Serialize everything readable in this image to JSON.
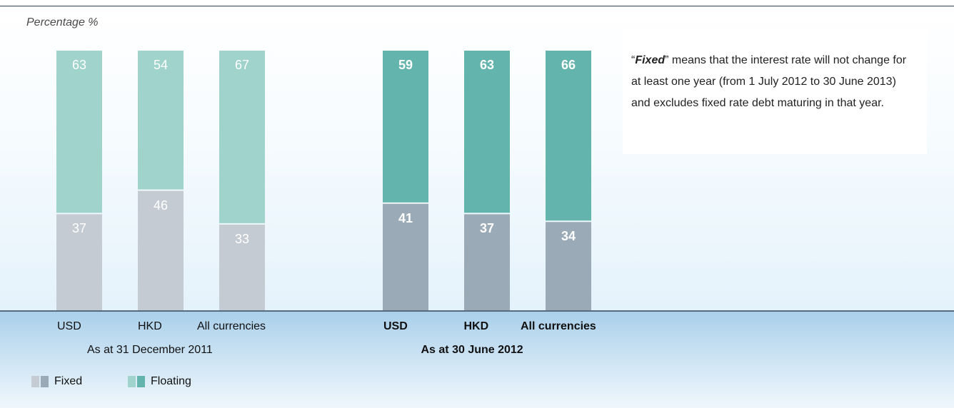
{
  "chart_data": {
    "type": "bar",
    "stacked": true,
    "ylabel": "Percentage %",
    "ylim": [
      0,
      100
    ],
    "grid": false,
    "legend_position": "bottom-left",
    "groups": [
      {
        "label": "As at 31 December 2011",
        "categories": [
          "USD",
          "HKD",
          "All currencies"
        ],
        "series": [
          {
            "name": "Fixed",
            "values": [
              37,
              46,
              33
            ],
            "color": "#c5cbd2"
          },
          {
            "name": "Floating",
            "values": [
              63,
              54,
              67
            ],
            "color": "#9fd3cb"
          }
        ]
      },
      {
        "label": "As at 30 June 2012",
        "categories": [
          "USD",
          "HKD",
          "All currencies"
        ],
        "series": [
          {
            "name": "Fixed",
            "values": [
              41,
              37,
              34
            ],
            "color": "#9aabb7"
          },
          {
            "name": "Floating",
            "values": [
              59,
              63,
              66
            ],
            "color": "#63b4ad"
          }
        ]
      }
    ]
  },
  "note": {
    "open_quote": "“",
    "term": "Fixed",
    "close_quote": "”",
    "text": " means that the interest rate will not change for at least one year (from 1 July 2012 to 30 June 2013) and excludes fixed rate debt maturing in that year."
  },
  "legend": [
    {
      "label": "Fixed",
      "colors": [
        "#c5cbd2",
        "#9aabb7"
      ]
    },
    {
      "label": "Floating",
      "colors": [
        "#9fd3cb",
        "#63b4ad"
      ]
    }
  ]
}
